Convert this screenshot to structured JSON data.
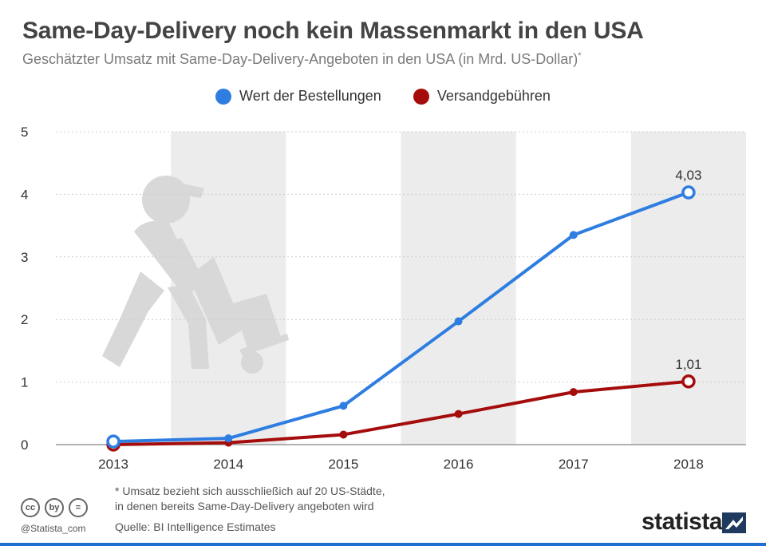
{
  "header": {
    "title": "Same-Day-Delivery noch kein Massenmarkt in den USA",
    "subtitle": "Geschätzter Umsatz mit Same-Day-Delivery-Angeboten in den USA (in Mrd. US-Dollar)",
    "subtitle_mark": "*"
  },
  "colors": {
    "blue": "#2e7de1",
    "red": "#a50d0d",
    "band": "#ececec",
    "grid": "#cccccc",
    "illustration": "#d8d8d8"
  },
  "chart_data": {
    "type": "line",
    "categories": [
      "2013",
      "2014",
      "2015",
      "2016",
      "2017",
      "2018"
    ],
    "series": [
      {
        "name": "Wert der Bestellungen",
        "values": [
          0.05,
          0.1,
          0.62,
          1.97,
          3.35,
          4.03
        ],
        "color": "#2e7de1"
      },
      {
        "name": "Versandgebühren",
        "values": [
          0.0,
          0.03,
          0.16,
          0.49,
          0.84,
          1.01
        ],
        "color": "#a50d0d"
      }
    ],
    "data_labels": {
      "blue": "4,03",
      "red": "1,01"
    },
    "ylim": [
      0,
      5
    ],
    "yticks": [
      "0",
      "1",
      "2",
      "3",
      "4",
      "5"
    ],
    "xlabel": "",
    "ylabel": "",
    "grid": true,
    "shaded_categories": [
      "2014",
      "2016",
      "2018"
    ],
    "legend_position": "top"
  },
  "footer": {
    "footnote_line1": "* Umsatz bezieht sich ausschließich auf 20 US-Städte,",
    "footnote_line2": "in denen bereits Same-Day-Delivery angeboten wird",
    "source": "Quelle: BI Intelligence Estimates",
    "handle": "@Statista_com",
    "brand": "statista",
    "cc_icons": [
      "cc",
      "by",
      "="
    ]
  }
}
